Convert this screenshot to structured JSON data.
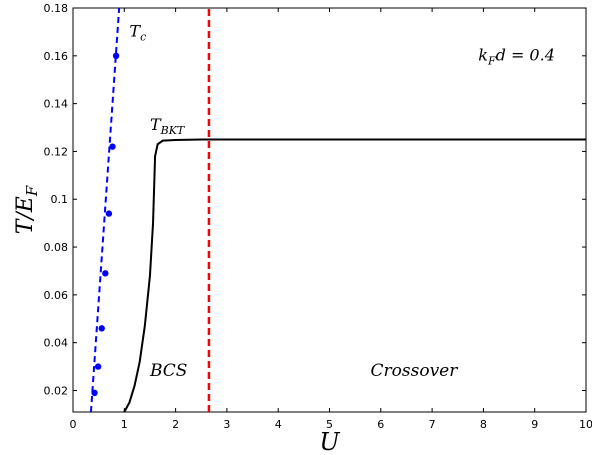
{
  "chart_data": {
    "type": "line",
    "xlabel": "U",
    "ylabel": "T/E_F",
    "xlim": [
      0,
      10
    ],
    "ylim": [
      0.011,
      0.18
    ],
    "x_ticks": [
      "0",
      "1",
      "2",
      "3",
      "4",
      "5",
      "6",
      "7",
      "8",
      "9",
      "10"
    ],
    "y_ticks": [
      "0.02",
      "0.04",
      "0.06",
      "0.08",
      "0.1",
      "0.12",
      "0.14",
      "0.16",
      "0.18"
    ],
    "grid": false,
    "series": [
      {
        "name": "T_c",
        "color": "#0000ff",
        "style": "dashed",
        "markers": true,
        "line_x": [
          0.35,
          0.9
        ],
        "line_y": [
          0.011,
          0.18
        ],
        "points": {
          "x": [
            0.42,
            0.49,
            0.56,
            0.63,
            0.7,
            0.77,
            0.84
          ],
          "y": [
            0.019,
            0.03,
            0.046,
            0.069,
            0.094,
            0.122,
            0.16
          ]
        }
      },
      {
        "name": "T_BKT",
        "color": "#000000",
        "style": "solid",
        "x": [
          1.0,
          1.1,
          1.2,
          1.3,
          1.4,
          1.5,
          1.56,
          1.6,
          1.65,
          1.75,
          2.0,
          2.5,
          3.0,
          4.0,
          6.0,
          8.0,
          10.0
        ],
        "y": [
          0.011,
          0.015,
          0.022,
          0.032,
          0.047,
          0.068,
          0.09,
          0.118,
          0.123,
          0.1245,
          0.1248,
          0.125,
          0.125,
          0.125,
          0.125,
          0.125,
          0.125
        ]
      },
      {
        "name": "boundary",
        "color": "#ff0000",
        "style": "dashed",
        "x": [
          2.65,
          2.65
        ],
        "y": [
          0.011,
          0.18
        ]
      }
    ],
    "annotations": {
      "tc_label": {
        "base": "T",
        "sub": "c",
        "x": 1.1,
        "y": 0.168
      },
      "tbkt_label": {
        "base": "T",
        "sub": "BKT",
        "x": 1.5,
        "y": 0.129
      },
      "kfd_label": {
        "base": "k",
        "sub": "F",
        "rest": "d = 0.4",
        "x": 7.9,
        "y": 0.158
      },
      "bcs_label": {
        "text": "BCS",
        "x": 1.5,
        "y": 0.026
      },
      "crossover_label": {
        "text": "Crossover",
        "x": 5.8,
        "y": 0.026
      }
    }
  }
}
